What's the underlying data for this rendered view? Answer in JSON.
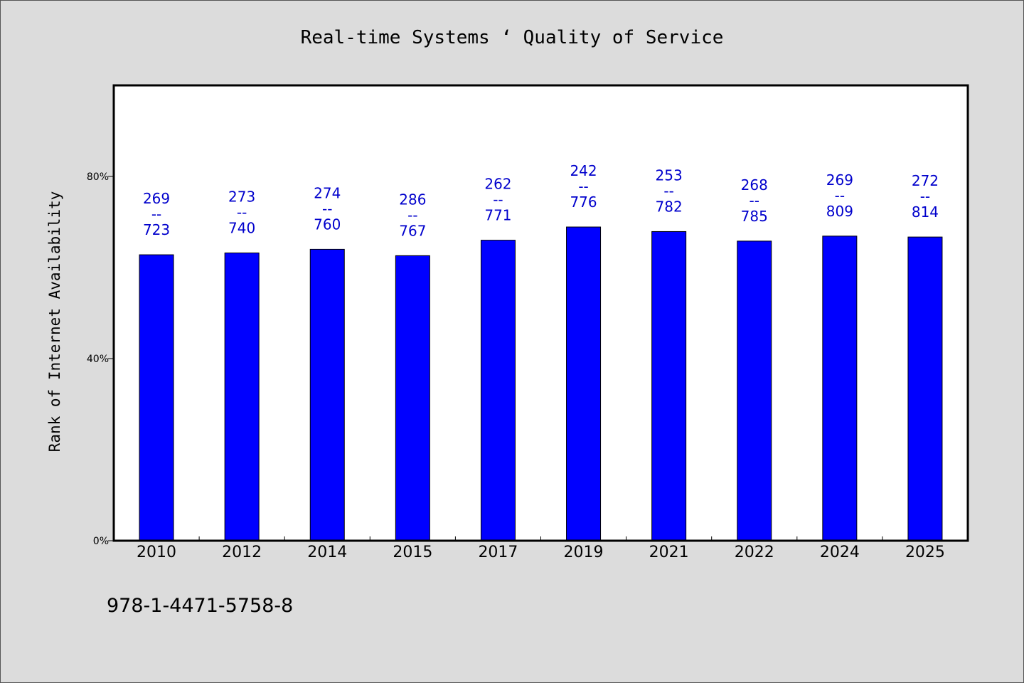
{
  "chart_data": {
    "type": "bar",
    "title": "Real-time Systems ‘ Quality of Service",
    "ylabel": "Rank of Internet Availability",
    "xlabel": "",
    "categories": [
      "2010",
      "2012",
      "2014",
      "2015",
      "2017",
      "2019",
      "2021",
      "2022",
      "2024",
      "2025"
    ],
    "values": [
      62.8,
      63.2,
      64.0,
      62.6,
      66.0,
      68.9,
      67.9,
      65.8,
      66.9,
      66.7
    ],
    "value_unit": "%",
    "data_labels": [
      [
        "269",
        "--",
        "723"
      ],
      [
        "273",
        "--",
        "740"
      ],
      [
        "274",
        "--",
        "760"
      ],
      [
        "286",
        "--",
        "767"
      ],
      [
        "262",
        "--",
        "771"
      ],
      [
        "242",
        "--",
        "776"
      ],
      [
        "253",
        "--",
        "782"
      ],
      [
        "268",
        "--",
        "785"
      ],
      [
        "269",
        "--",
        "809"
      ],
      [
        "272",
        "--",
        "814"
      ]
    ],
    "ylim": [
      0,
      100
    ],
    "yticks": [
      0,
      40,
      80
    ],
    "ytick_labels": [
      "0%",
      "40%",
      "80%"
    ],
    "grid": false,
    "legend": "none",
    "bar_color": "#0000ff",
    "label_color": "#0000cc"
  },
  "footer_text": "978-1-4471-5758-8"
}
